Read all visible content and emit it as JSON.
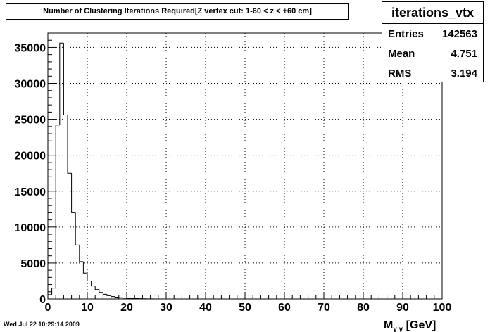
{
  "title": "Number of Clustering Iterations Required[Z vertex cut: 1-60 < z < +60 cm]",
  "stats": {
    "name": "iterations_vtx",
    "entries_label": "Entries",
    "entries_value": "142563",
    "mean_label": "Mean",
    "mean_value": "4.751",
    "rms_label": "RMS",
    "rms_value": "3.194"
  },
  "timestamp": "Wed Jul 22 10:29:14 2009",
  "chart_data": {
    "type": "bar",
    "title": "Number of Clustering Iterations Required[Z vertex cut: 1-60 < z < +60 cm]",
    "xlabel": "Mγγ [GeV]",
    "ylabel": "",
    "xlim": [
      0,
      100
    ],
    "ylim": [
      0,
      37000
    ],
    "bin_width": 1,
    "x_ticks": [
      0,
      10,
      20,
      30,
      40,
      50,
      60,
      70,
      80,
      90,
      100
    ],
    "y_ticks": [
      0,
      5000,
      10000,
      15000,
      20000,
      25000,
      30000,
      35000
    ],
    "grid": true,
    "bin_edges_start": 0,
    "values": [
      600,
      1500,
      24200,
      35600,
      25600,
      17500,
      12000,
      7500,
      5200,
      3600,
      2500,
      1800,
      1300,
      900,
      650,
      450,
      330,
      240,
      170,
      120,
      90,
      65,
      50,
      35,
      25,
      15,
      10,
      5,
      3,
      2
    ]
  },
  "axis_label_parts": {
    "x_main": "M",
    "x_sub": "γ γ",
    "x_unit": " [GeV]"
  }
}
